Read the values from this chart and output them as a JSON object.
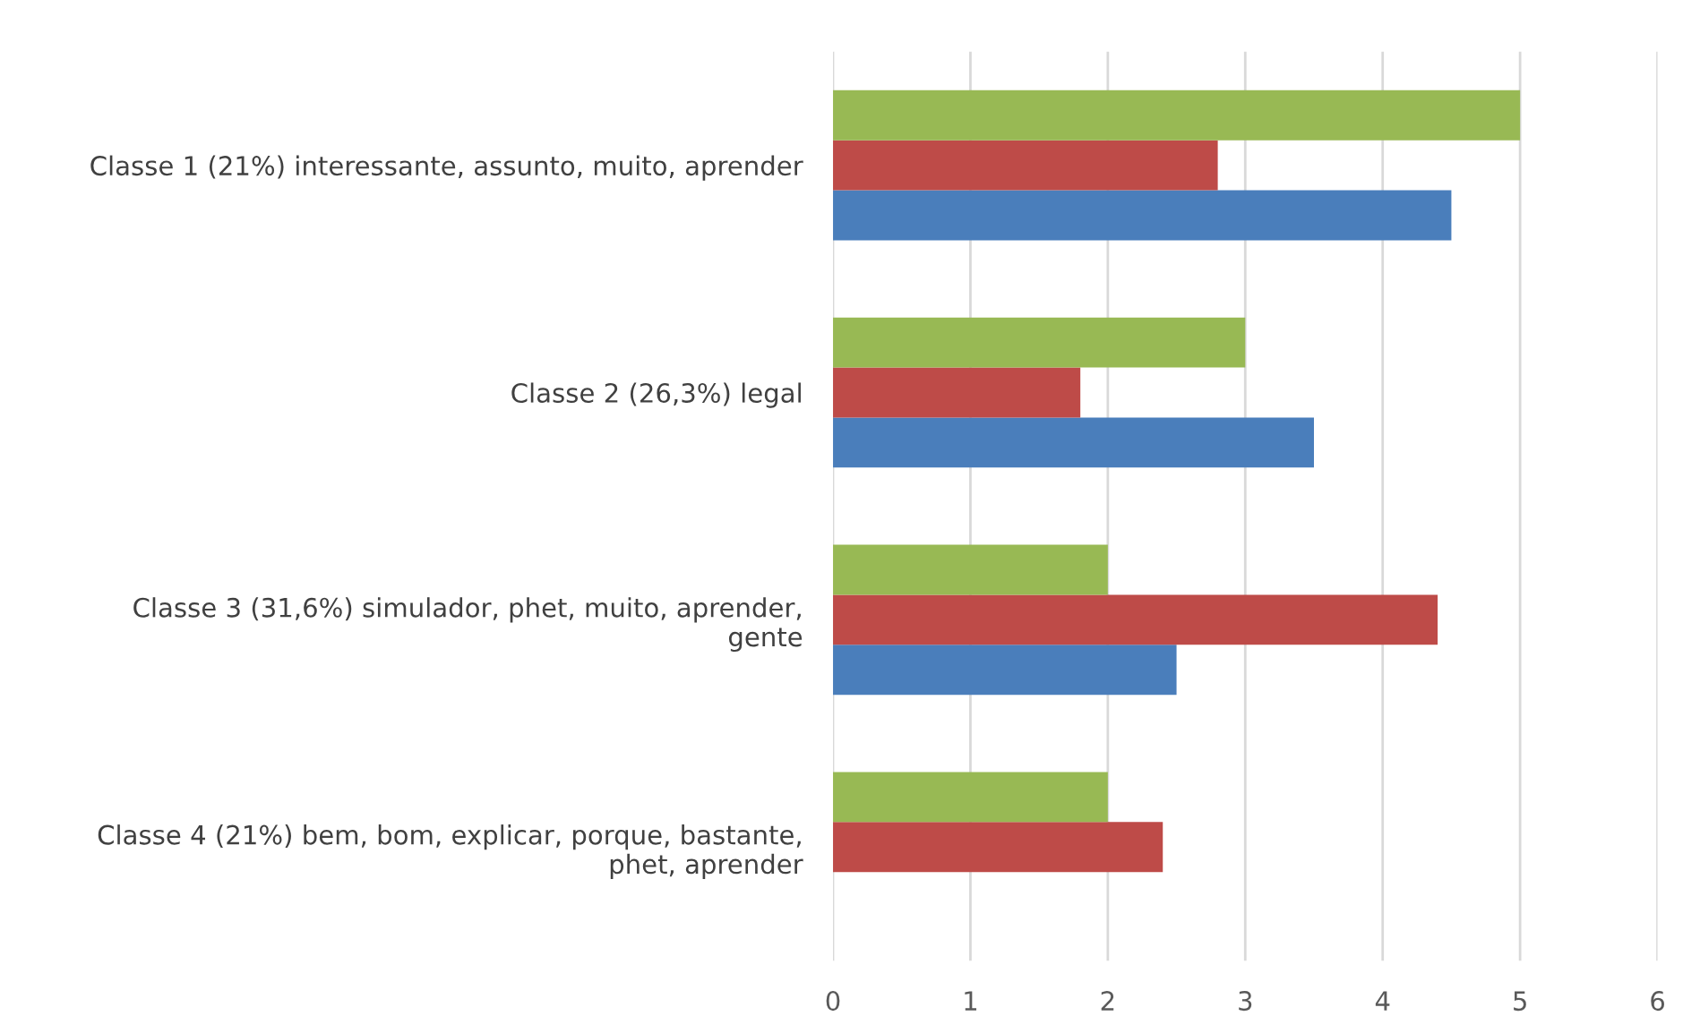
{
  "chart_data": {
    "type": "bar",
    "orientation": "horizontal",
    "categories": [
      "Classe 1 (21%) interessante, assunto, muito, aprender",
      "Classe 2 (26,3%) legal",
      "Classe 3 (31,6%) simulador, phet, muito, aprender, gente",
      "Classe 4 (21%) bem, bom, explicar, porque, bastante, phet, aprender"
    ],
    "series": [
      {
        "color": "#4a7ebb",
        "values": [
          4.5,
          3.5,
          2.5,
          null
        ]
      },
      {
        "color": "#be4b48",
        "values": [
          2.8,
          1.8,
          4.4,
          2.4
        ]
      },
      {
        "color": "#98b954",
        "values": [
          5,
          3,
          2,
          2
        ]
      }
    ],
    "xlim": [
      0,
      6
    ],
    "xticks": [
      0,
      1,
      2,
      3,
      4,
      5,
      6
    ],
    "grid": "x",
    "legend": false
  }
}
